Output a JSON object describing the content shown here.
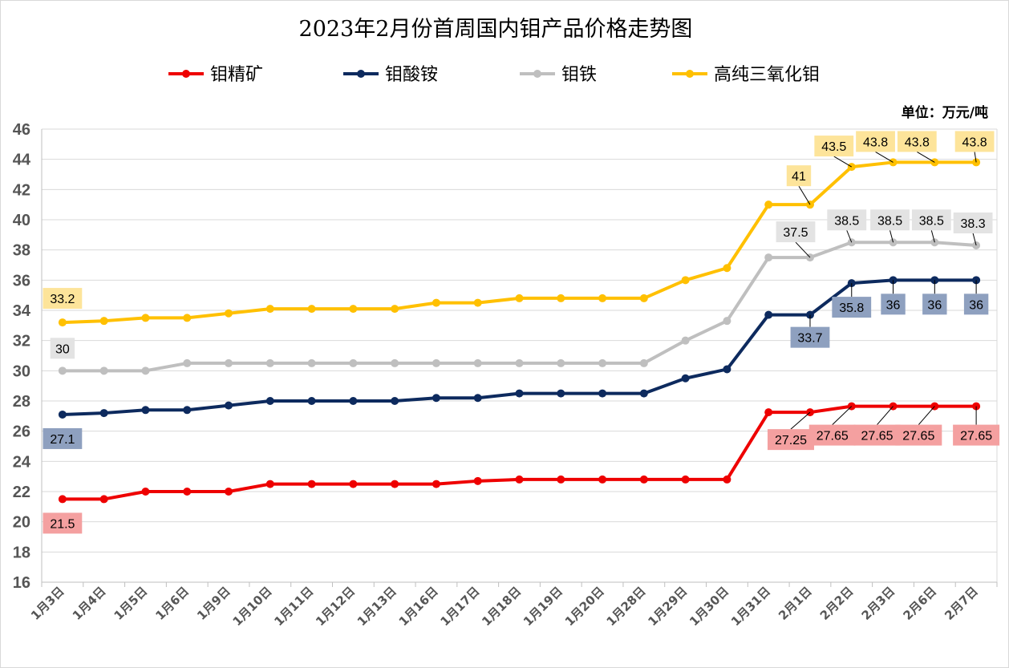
{
  "chart_data": {
    "type": "line",
    "title": "2023年2月份首周国内钼产品价格走势图",
    "unit_label": "单位：万元/吨",
    "ylim": [
      16,
      46
    ],
    "ytick_step": 2,
    "grid": true,
    "legend_position": "top",
    "categories": [
      "1月3日",
      "1月4日",
      "1月5日",
      "1月6日",
      "1月9日",
      "1月10日",
      "1月11日",
      "1月12日",
      "1月13日",
      "1月16日",
      "1月17日",
      "1月18日",
      "1月19日",
      "1月20日",
      "1月28日",
      "1月29日",
      "1月30日",
      "1月31日",
      "2月1日",
      "2月2日",
      "2月3日",
      "2月6日",
      "2月7日"
    ],
    "series": [
      {
        "name": "钼精矿",
        "color": "#ee0000",
        "label_bg": "#f4a0a0",
        "values": [
          21.5,
          21.5,
          22,
          22,
          22,
          22.5,
          22.5,
          22.5,
          22.5,
          22.5,
          22.7,
          22.8,
          22.8,
          22.8,
          22.8,
          22.8,
          22.8,
          27.25,
          27.25,
          27.65,
          27.65,
          27.65,
          27.65
        ],
        "labels": [
          {
            "i": 0,
            "text": "21.5"
          },
          {
            "i": 18,
            "text": "27.25"
          },
          {
            "i": 19,
            "text": "27.65"
          },
          {
            "i": 20,
            "text": "27.65"
          },
          {
            "i": 21,
            "text": "27.65"
          },
          {
            "i": 22,
            "text": "27.65"
          }
        ]
      },
      {
        "name": "钼酸铵",
        "color": "#0d2a5e",
        "label_bg": "#8ea0bf",
        "values": [
          27.1,
          27.2,
          27.4,
          27.4,
          27.7,
          28,
          28,
          28,
          28,
          28.2,
          28.2,
          28.5,
          28.5,
          28.5,
          28.5,
          29.5,
          30.1,
          33.7,
          33.7,
          35.8,
          36,
          36,
          36
        ],
        "labels": [
          {
            "i": 0,
            "text": "27.1"
          },
          {
            "i": 18,
            "text": "33.7"
          },
          {
            "i": 19,
            "text": "35.8"
          },
          {
            "i": 20,
            "text": "36"
          },
          {
            "i": 21,
            "text": "36"
          },
          {
            "i": 22,
            "text": "36"
          }
        ]
      },
      {
        "name": "钼铁",
        "color": "#bfbfbf",
        "label_bg": "#e3e3e3",
        "values": [
          30,
          30,
          30,
          30.5,
          30.5,
          30.5,
          30.5,
          30.5,
          30.5,
          30.5,
          30.5,
          30.5,
          30.5,
          30.5,
          30.5,
          32,
          33.3,
          37.5,
          37.5,
          38.5,
          38.5,
          38.5,
          38.3
        ],
        "labels": [
          {
            "i": 0,
            "text": "30"
          },
          {
            "i": 18,
            "text": "37.5"
          },
          {
            "i": 19,
            "text": "38.5"
          },
          {
            "i": 20,
            "text": "38.5"
          },
          {
            "i": 21,
            "text": "38.5"
          },
          {
            "i": 22,
            "text": "38.3"
          }
        ]
      },
      {
        "name": "高纯三氧化钼",
        "color": "#ffc000",
        "label_bg": "#fde49a",
        "values": [
          33.2,
          33.3,
          33.5,
          33.5,
          33.8,
          34.1,
          34.1,
          34.1,
          34.1,
          34.5,
          34.5,
          34.8,
          34.8,
          34.8,
          34.8,
          36,
          36.8,
          41,
          41,
          43.5,
          43.8,
          43.8,
          43.8
        ],
        "labels": [
          {
            "i": 0,
            "text": "33.2"
          },
          {
            "i": 18,
            "text": "41"
          },
          {
            "i": 19,
            "text": "43.5"
          },
          {
            "i": 20,
            "text": "43.8"
          },
          {
            "i": 21,
            "text": "43.8"
          },
          {
            "i": 22,
            "text": "43.8"
          }
        ]
      }
    ]
  }
}
